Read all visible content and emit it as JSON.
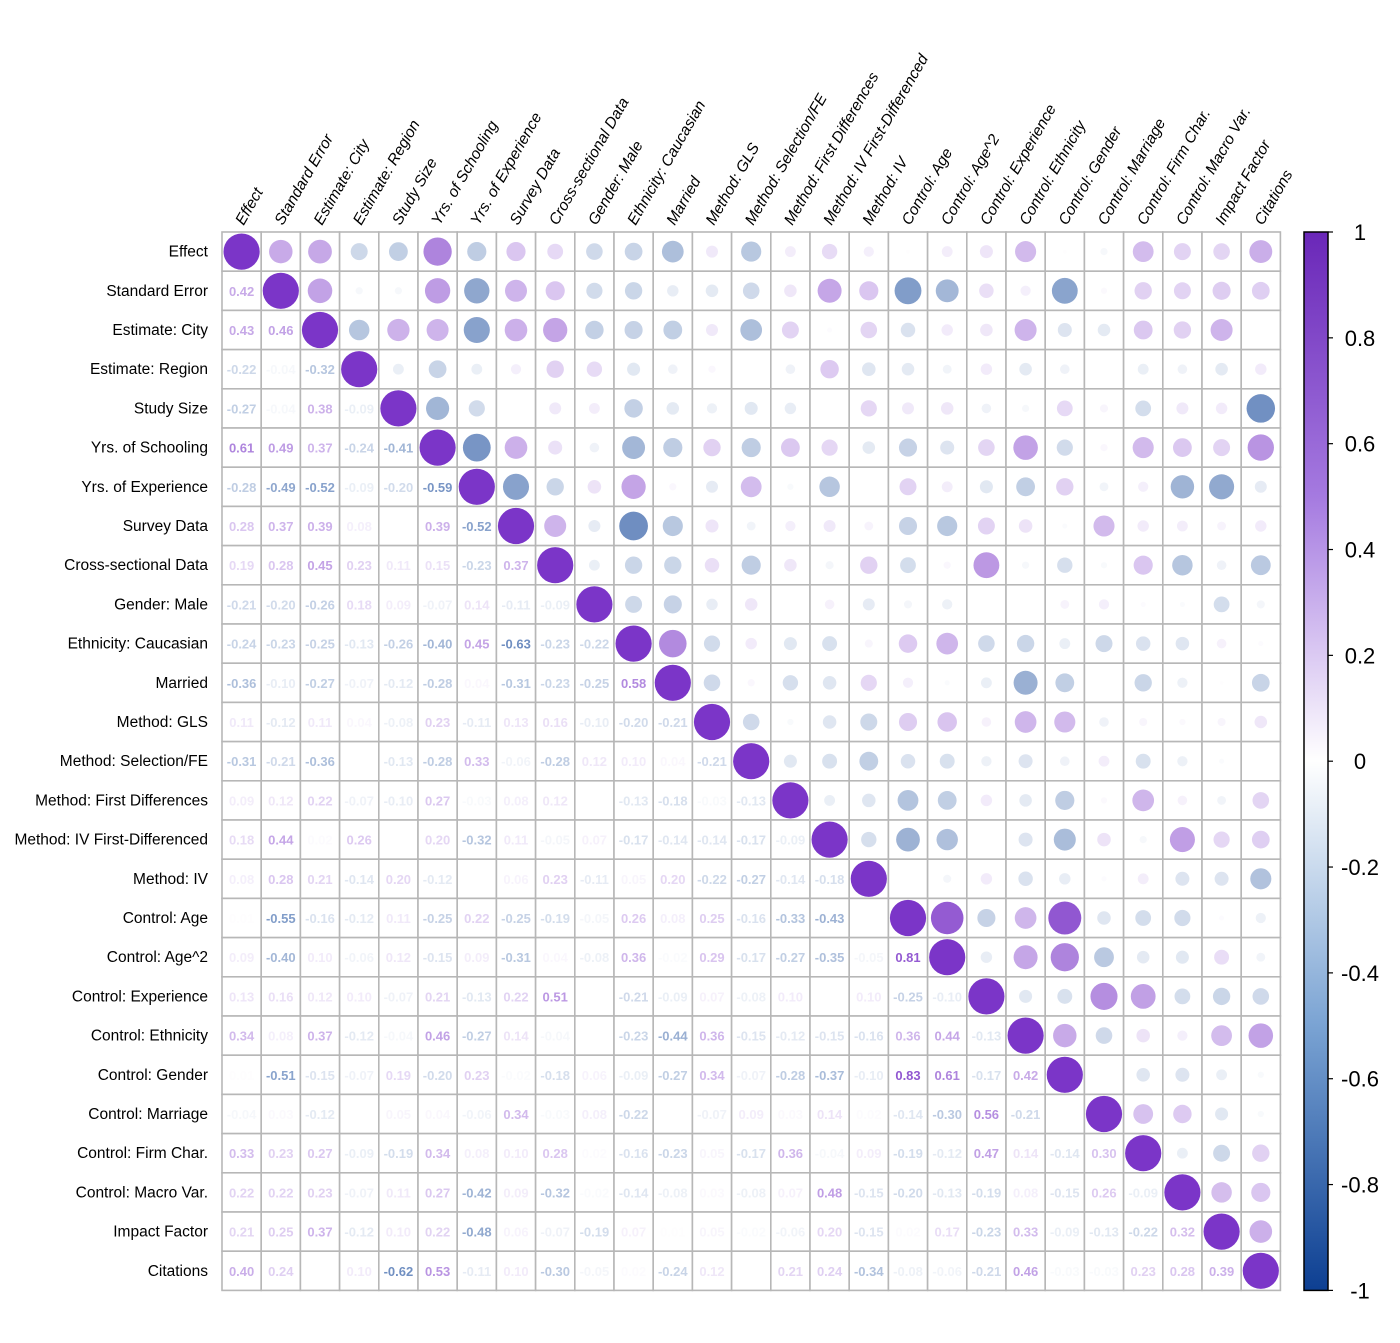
{
  "chart_data": {
    "type": "heatmap",
    "variables": [
      "Effect",
      "Standard Error",
      "Estimate: City",
      "Estimate: Region",
      "Study Size",
      "Yrs. of Schooling",
      "Yrs. of Experience",
      "Survey Data",
      "Cross-sectional Data",
      "Gender: Male",
      "Ethnicity: Caucasian",
      "Married",
      "Method: GLS",
      "Method: Selection/FE",
      "Method: First Differences",
      "Method: IV First-Differenced",
      "Method: IV",
      "Control: Age",
      "Control: Age^2",
      "Control: Experience",
      "Control: Ethnicity",
      "Control: Gender",
      "Control: Marriage",
      "Control: Firm Char.",
      "Control: Macro Var.",
      "Impact Factor",
      "Citations"
    ],
    "lower_triangle": [
      [],
      [
        0.42
      ],
      [
        0.43,
        0.46
      ],
      [
        -0.22,
        -0.04,
        -0.32
      ],
      [
        -0.27,
        -0.04,
        0.38,
        -0.09
      ],
      [
        0.61,
        0.49,
        0.37,
        -0.24,
        -0.41
      ],
      [
        -0.28,
        -0.49,
        -0.52,
        -0.09,
        -0.2,
        -0.59
      ],
      [
        0.28,
        0.37,
        0.39,
        0.08,
        0.0,
        0.39,
        -0.52
      ],
      [
        0.19,
        0.28,
        0.45,
        0.23,
        0.11,
        0.15,
        -0.23,
        0.37
      ],
      [
        -0.21,
        -0.2,
        -0.26,
        0.18,
        0.09,
        -0.07,
        0.14,
        -0.11,
        -0.09
      ],
      [
        -0.24,
        -0.23,
        -0.25,
        -0.13,
        -0.26,
        -0.4,
        0.45,
        -0.63,
        -0.23,
        -0.22
      ],
      [
        -0.36,
        -0.1,
        -0.27,
        -0.07,
        -0.12,
        -0.28,
        0.04,
        -0.31,
        -0.23,
        -0.25,
        0.58
      ],
      [
        0.11,
        -0.12,
        0.11,
        0.04,
        -0.08,
        0.23,
        -0.11,
        0.13,
        0.16,
        -0.1,
        -0.2,
        -0.21
      ],
      [
        -0.31,
        -0.21,
        -0.36,
        0.0,
        -0.13,
        -0.28,
        0.33,
        -0.06,
        -0.28,
        0.12,
        0.1,
        0.04,
        -0.21
      ],
      [
        0.09,
        0.12,
        0.22,
        -0.07,
        -0.1,
        0.27,
        -0.03,
        0.08,
        0.12,
        0.0,
        -0.13,
        -0.18,
        -0.03,
        -0.13
      ],
      [
        0.18,
        0.44,
        0.02,
        0.26,
        0.0,
        0.2,
        -0.32,
        0.11,
        -0.05,
        0.07,
        -0.17,
        -0.14,
        -0.14,
        -0.17,
        -0.09
      ],
      [
        0.08,
        0.28,
        0.21,
        -0.14,
        0.2,
        -0.12,
        0.0,
        0.06,
        0.23,
        -0.11,
        0.05,
        0.2,
        -0.22,
        -0.27,
        -0.14,
        -0.18
      ],
      [
        0.01,
        -0.55,
        -0.16,
        -0.12,
        0.11,
        -0.25,
        0.22,
        -0.25,
        -0.19,
        -0.05,
        0.26,
        0.08,
        0.25,
        -0.16,
        -0.33,
        -0.43,
        0.0
      ],
      [
        0.09,
        -0.4,
        0.1,
        -0.06,
        0.12,
        -0.15,
        0.09,
        -0.31,
        0.04,
        -0.08,
        0.36,
        -0.02,
        0.29,
        -0.17,
        -0.27,
        -0.35,
        -0.05,
        0.81
      ],
      [
        0.13,
        0.16,
        0.12,
        0.1,
        -0.07,
        0.21,
        -0.13,
        0.22,
        0.51,
        0.0,
        -0.21,
        -0.09,
        0.07,
        -0.08,
        0.1,
        0.0,
        0.1,
        -0.25,
        -0.1
      ],
      [
        0.34,
        0.08,
        0.37,
        -0.12,
        -0.04,
        0.46,
        -0.27,
        0.14,
        -0.04,
        0.0,
        -0.23,
        -0.44,
        0.36,
        -0.15,
        -0.12,
        -0.15,
        -0.16,
        0.36,
        0.44,
        -0.13
      ],
      [
        0.01,
        -0.51,
        -0.15,
        -0.07,
        0.19,
        -0.2,
        0.23,
        -0.02,
        -0.18,
        0.06,
        -0.09,
        -0.27,
        0.34,
        -0.07,
        -0.28,
        -0.37,
        -0.1,
        0.83,
        0.61,
        -0.17,
        0.42
      ],
      [
        -0.04,
        0.03,
        -0.12,
        0.0,
        0.05,
        0.04,
        -0.06,
        0.34,
        -0.03,
        0.08,
        -0.22,
        0.0,
        -0.07,
        0.09,
        0.03,
        0.14,
        0.02,
        -0.14,
        -0.3,
        0.56,
        -0.21,
        0.0
      ],
      [
        0.33,
        0.23,
        0.27,
        -0.09,
        -0.19,
        0.34,
        0.08,
        0.1,
        0.28,
        0.02,
        -0.16,
        -0.23,
        0.05,
        -0.17,
        0.36,
        -0.04,
        0.09,
        -0.19,
        -0.12,
        0.47,
        0.14,
        -0.14,
        0.3
      ],
      [
        0.22,
        0.22,
        0.23,
        -0.07,
        0.11,
        0.27,
        -0.42,
        0.09,
        -0.32,
        -0.02,
        -0.14,
        -0.08,
        0.03,
        -0.08,
        0.07,
        0.48,
        -0.15,
        -0.2,
        -0.13,
        -0.19,
        0.08,
        -0.15,
        0.26,
        -0.09
      ],
      [
        0.21,
        0.25,
        0.37,
        -0.12,
        0.1,
        0.22,
        -0.48,
        0.06,
        -0.07,
        -0.19,
        0.07,
        0.01,
        0.05,
        -0.02,
        -0.06,
        0.2,
        -0.15,
        0.02,
        0.17,
        -0.23,
        0.33,
        -0.09,
        -0.13,
        -0.22,
        0.32
      ],
      [
        0.4,
        0.24,
        0.0,
        0.1,
        -0.62,
        0.53,
        -0.11,
        0.1,
        -0.3,
        -0.05,
        0.02,
        -0.24,
        0.12,
        0.0,
        0.21,
        0.24,
        -0.34,
        -0.08,
        -0.06,
        -0.21,
        0.46,
        -0.03,
        -0.03,
        0.23,
        0.28,
        0.39
      ]
    ],
    "colorbar": {
      "ticks": [
        "1",
        "0.8",
        "0.6",
        "0.4",
        "0.2",
        "0",
        "-0.2",
        "-0.4",
        "-0.6",
        "-0.8",
        "-1"
      ],
      "min": -1,
      "max": 1,
      "colors": {
        "neg": "#1a4c9c",
        "mid": "#ffffff",
        "pos": "#7b35c8"
      }
    },
    "grid_color": "#b7b7b7"
  }
}
